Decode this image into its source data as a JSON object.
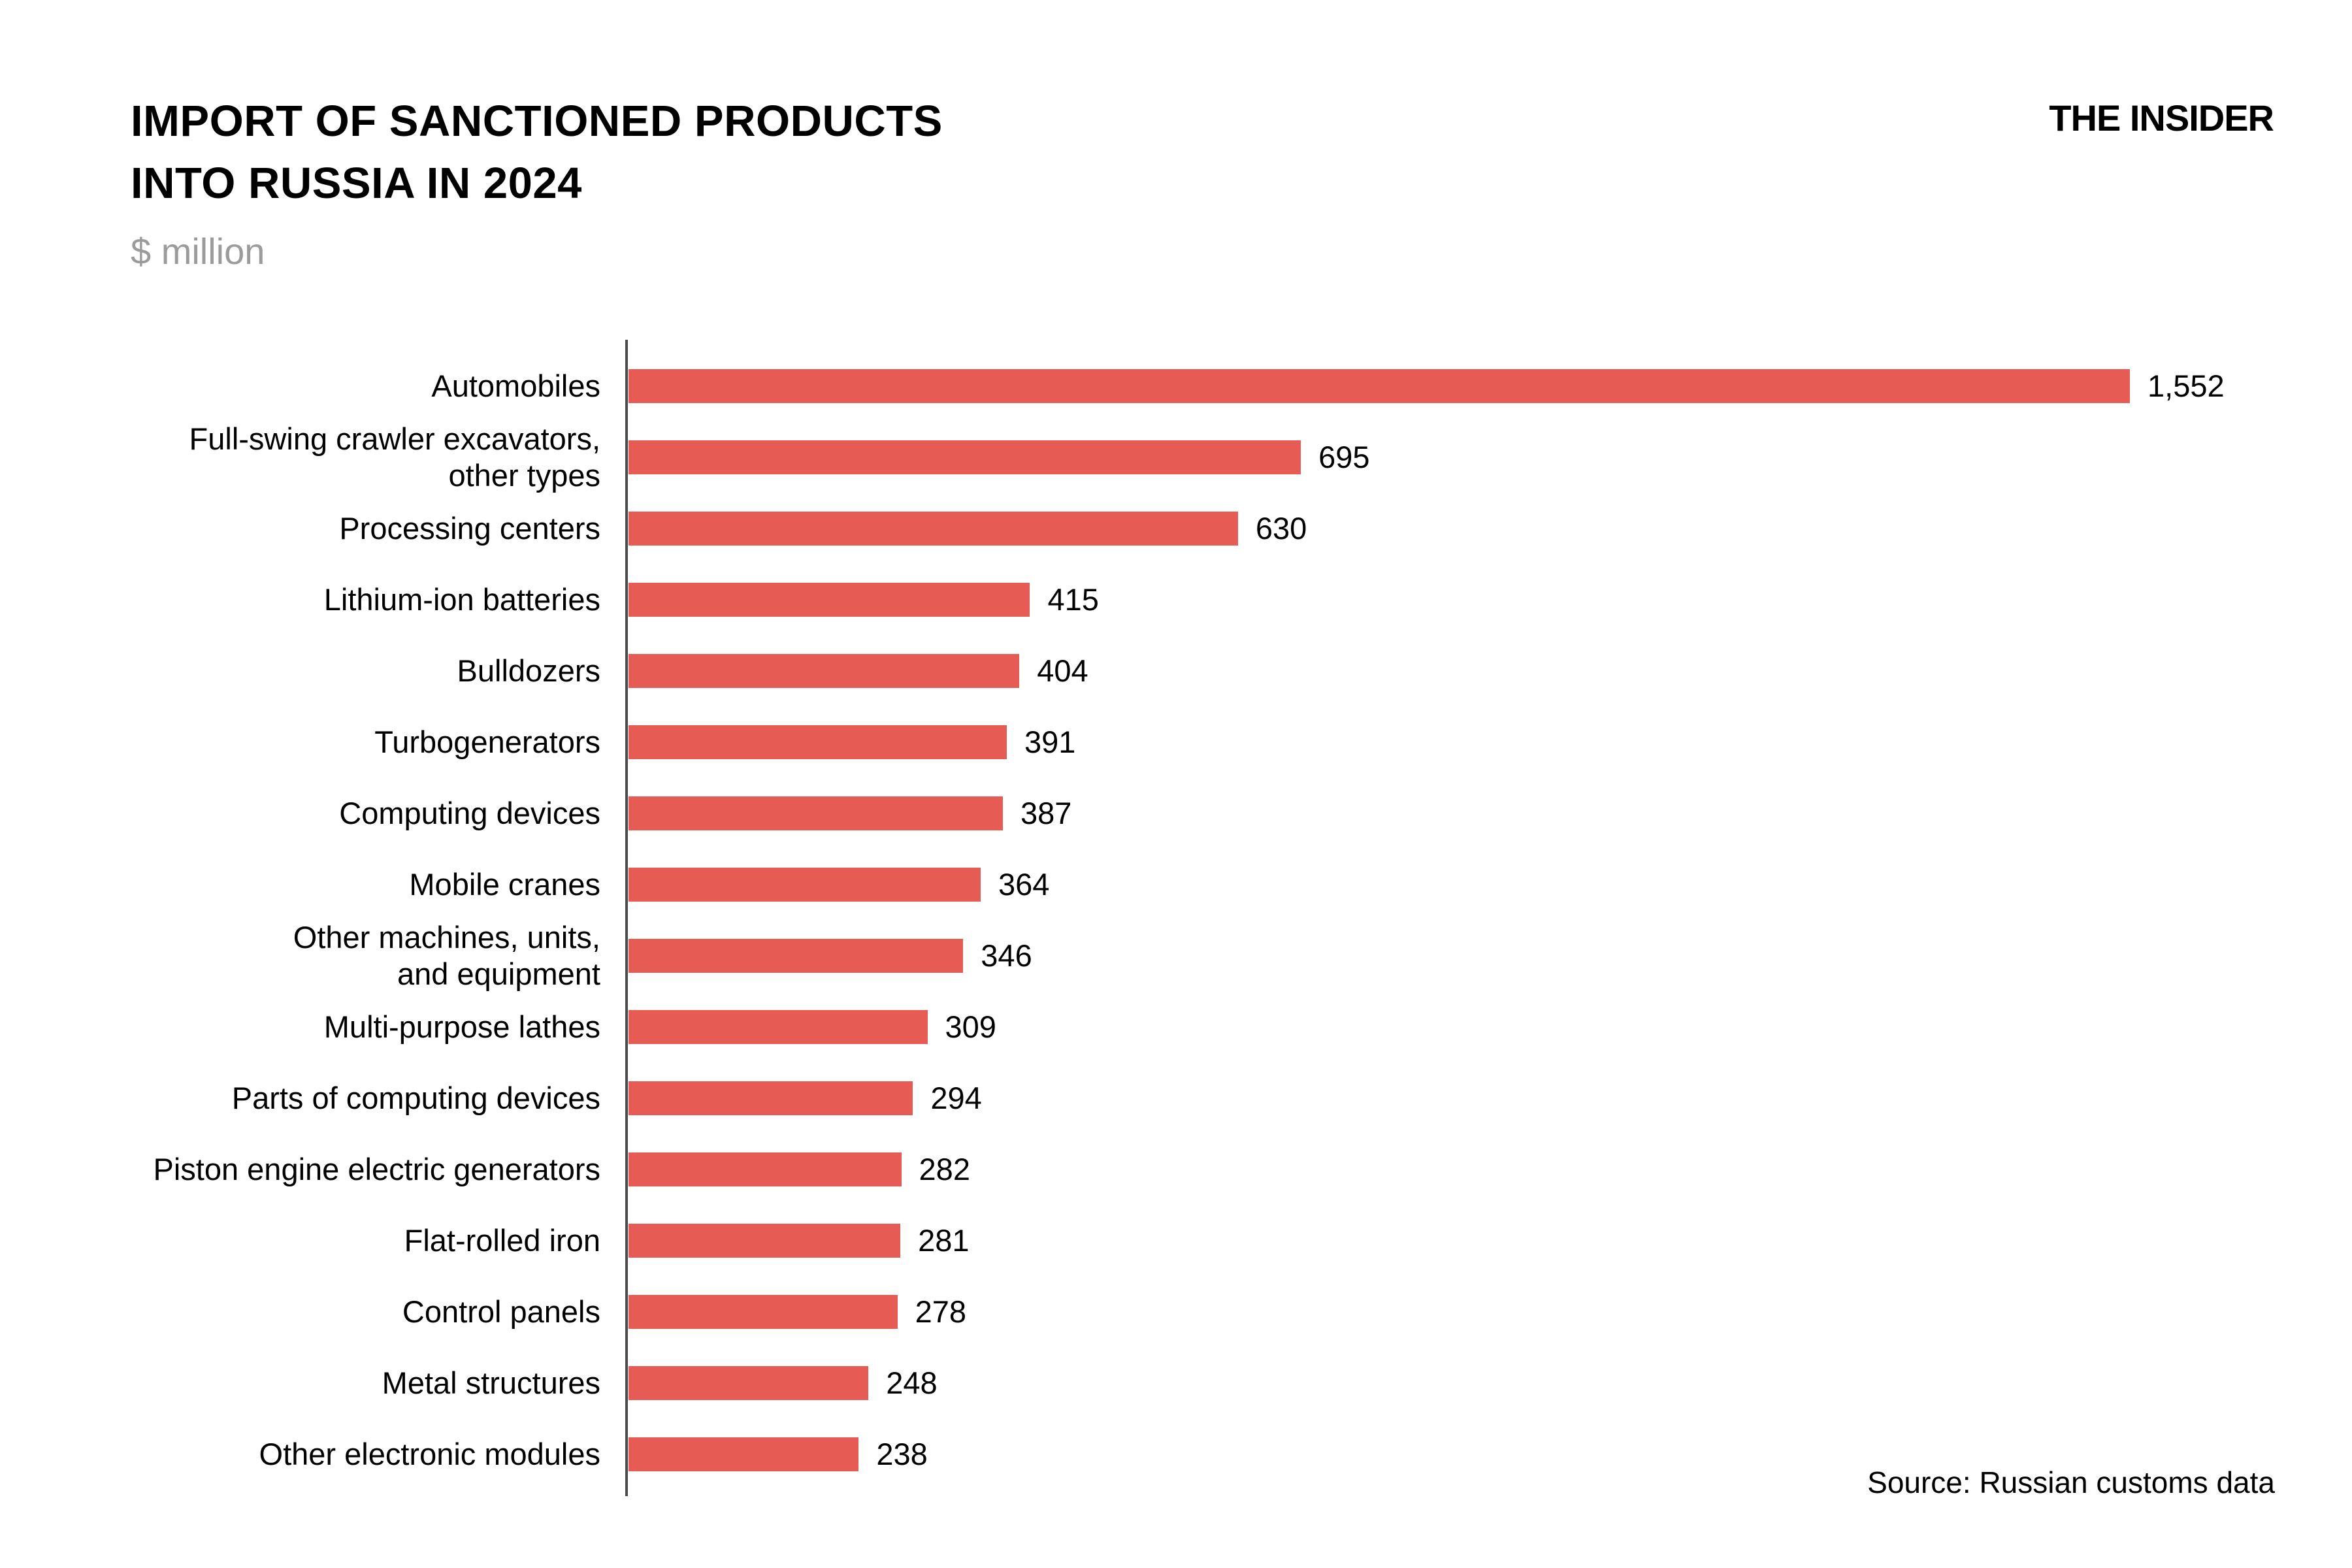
{
  "header": {
    "title": "IMPORT OF SANCTIONED PRODUCTS\nINTO RUSSIA IN 2024",
    "subtitle": "$ million",
    "logo": "THE INSIDER"
  },
  "footer": {
    "source": "Source: Russian customs data"
  },
  "colors": {
    "bar": "#E65C55",
    "axis": "#4A4A4A",
    "subtitle_text": "#9B9B9B",
    "text": "#000000",
    "background": "#FFFFFF"
  },
  "chart_data": {
    "type": "bar",
    "orientation": "horizontal",
    "title": "IMPORT OF SANCTIONED PRODUCTS INTO RUSSIA IN 2024",
    "unit_label": "$ million",
    "xlabel": "",
    "ylabel": "",
    "value_axis_range": [
      0,
      1552
    ],
    "grid": false,
    "legend": false,
    "categories": [
      "Automobiles",
      "Full-swing crawler excavators,\nother types",
      "Processing centers",
      "Lithium-ion batteries",
      "Bulldozers",
      "Turbogenerators",
      "Computing devices",
      "Mobile cranes",
      "Other machines, units,\nand equipment",
      "Multi-purpose lathes",
      "Parts of computing devices",
      "Piston engine electric generators",
      "Flat-rolled iron",
      "Control panels",
      "Metal structures",
      "Other electronic modules"
    ],
    "values": [
      1552,
      695,
      630,
      415,
      404,
      391,
      387,
      364,
      346,
      309,
      294,
      282,
      281,
      278,
      248,
      238
    ],
    "value_labels": [
      "1,552",
      "695",
      "630",
      "415",
      "404",
      "391",
      "387",
      "364",
      "346",
      "309",
      "294",
      "282",
      "281",
      "278",
      "248",
      "238"
    ]
  }
}
